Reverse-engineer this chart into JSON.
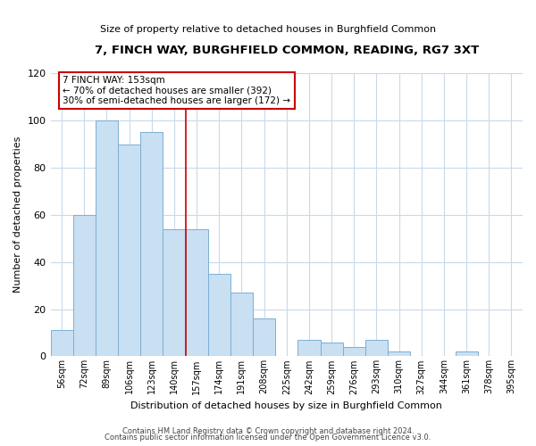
{
  "title": "7, FINCH WAY, BURGHFIELD COMMON, READING, RG7 3XT",
  "subtitle": "Size of property relative to detached houses in Burghfield Common",
  "xlabel": "Distribution of detached houses by size in Burghfield Common",
  "ylabel": "Number of detached properties",
  "bar_labels": [
    "56sqm",
    "72sqm",
    "89sqm",
    "106sqm",
    "123sqm",
    "140sqm",
    "157sqm",
    "174sqm",
    "191sqm",
    "208sqm",
    "225sqm",
    "242sqm",
    "259sqm",
    "276sqm",
    "293sqm",
    "310sqm",
    "327sqm",
    "344sqm",
    "361sqm",
    "378sqm",
    "395sqm"
  ],
  "bar_values": [
    11,
    60,
    100,
    90,
    95,
    54,
    54,
    35,
    27,
    16,
    0,
    7,
    6,
    4,
    7,
    2,
    0,
    0,
    2,
    0,
    0
  ],
  "bar_color": "#c9dff2",
  "bar_edge_color": "#7ab0d4",
  "ylim": [
    0,
    120
  ],
  "yticks": [
    0,
    20,
    40,
    60,
    80,
    100,
    120
  ],
  "vline_index": 6,
  "vline_color": "#cc0000",
  "annotation_title": "7 FINCH WAY: 153sqm",
  "annotation_line1": "← 70% of detached houses are smaller (392)",
  "annotation_line2": "30% of semi-detached houses are larger (172) →",
  "annotation_box_color": "#ffffff",
  "annotation_box_edge": "#cc0000",
  "footer1": "Contains HM Land Registry data © Crown copyright and database right 2024.",
  "footer2": "Contains public sector information licensed under the Open Government Licence v3.0.",
  "background_color": "#ffffff",
  "grid_color": "#c8daea"
}
